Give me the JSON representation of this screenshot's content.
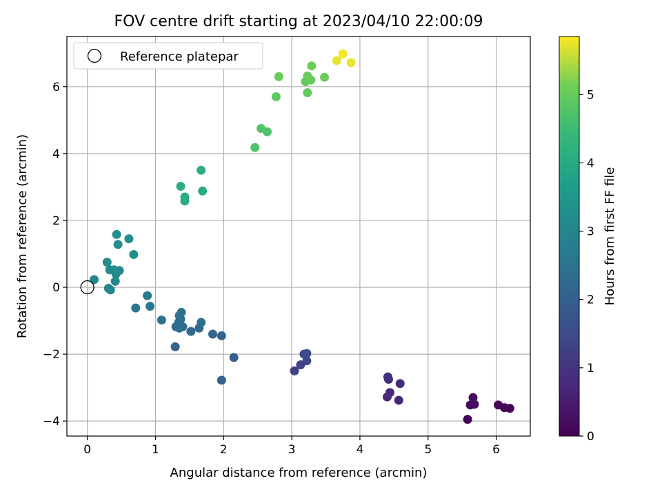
{
  "chart_data": {
    "type": "scatter",
    "title": "FOV centre drift starting at 2023/04/10 22:00:09",
    "xlabel": "Angular distance from reference (arcmin)",
    "ylabel": "Rotation from reference (arcmin)",
    "xlim": [
      -0.3,
      6.5
    ],
    "ylim": [
      -4.45,
      7.5
    ],
    "xticks": [
      0,
      1,
      2,
      3,
      4,
      5,
      6
    ],
    "yticks": [
      -4,
      -2,
      0,
      2,
      4,
      6
    ],
    "grid": true,
    "legend": {
      "placement": "top-left",
      "entries": [
        "Reference platepar"
      ]
    },
    "reference_point": {
      "x": 0,
      "y": 0
    },
    "colorbar": {
      "label": "Hours from first FF file",
      "range": [
        0,
        5.85
      ],
      "ticks": [
        0,
        1,
        2,
        3,
        4,
        5
      ],
      "colormap": "viridis"
    },
    "points": [
      {
        "x": 5.58,
        "y": -3.95,
        "t": 0.05
      },
      {
        "x": 6.2,
        "y": -3.62,
        "t": 0.08
      },
      {
        "x": 6.12,
        "y": -3.6,
        "t": 0.1
      },
      {
        "x": 6.03,
        "y": -3.52,
        "t": 0.12
      },
      {
        "x": 5.68,
        "y": -3.5,
        "t": 0.18
      },
      {
        "x": 5.62,
        "y": -3.52,
        "t": 0.2
      },
      {
        "x": 5.66,
        "y": -3.3,
        "t": 0.22
      },
      {
        "x": 4.57,
        "y": -3.38,
        "t": 0.7
      },
      {
        "x": 4.4,
        "y": -3.28,
        "t": 0.75
      },
      {
        "x": 4.44,
        "y": -3.15,
        "t": 0.78
      },
      {
        "x": 4.59,
        "y": -2.88,
        "t": 0.82
      },
      {
        "x": 4.42,
        "y": -2.75,
        "t": 0.85
      },
      {
        "x": 4.41,
        "y": -2.68,
        "t": 0.88
      },
      {
        "x": 3.04,
        "y": -2.5,
        "t": 1.3
      },
      {
        "x": 3.13,
        "y": -2.32,
        "t": 1.35
      },
      {
        "x": 3.22,
        "y": -2.2,
        "t": 1.4
      },
      {
        "x": 3.18,
        "y": -2.0,
        "t": 1.45
      },
      {
        "x": 3.22,
        "y": -1.98,
        "t": 1.48
      },
      {
        "x": 2.15,
        "y": -2.1,
        "t": 1.95
      },
      {
        "x": 1.97,
        "y": -2.78,
        "t": 2.0
      },
      {
        "x": 1.29,
        "y": -1.78,
        "t": 2.05
      },
      {
        "x": 1.97,
        "y": -1.45,
        "t": 2.1
      },
      {
        "x": 1.84,
        "y": -1.4,
        "t": 2.15
      },
      {
        "x": 1.52,
        "y": -1.32,
        "t": 2.2
      },
      {
        "x": 1.64,
        "y": -1.22,
        "t": 2.25
      },
      {
        "x": 1.35,
        "y": -1.22,
        "t": 2.28
      },
      {
        "x": 1.4,
        "y": -1.18,
        "t": 2.3
      },
      {
        "x": 1.3,
        "y": -1.18,
        "t": 2.32
      },
      {
        "x": 1.34,
        "y": -1.05,
        "t": 2.35
      },
      {
        "x": 1.67,
        "y": -1.05,
        "t": 2.38
      },
      {
        "x": 1.37,
        "y": -0.95,
        "t": 2.4
      },
      {
        "x": 1.35,
        "y": -0.85,
        "t": 2.42
      },
      {
        "x": 1.38,
        "y": -0.75,
        "t": 2.45
      },
      {
        "x": 1.09,
        "y": -0.98,
        "t": 2.5
      },
      {
        "x": 0.71,
        "y": -0.62,
        "t": 2.6
      },
      {
        "x": 0.92,
        "y": -0.57,
        "t": 2.65
      },
      {
        "x": 0.88,
        "y": -0.25,
        "t": 2.7
      },
      {
        "x": 0.34,
        "y": -0.08,
        "t": 3.0
      },
      {
        "x": 0.31,
        "y": -0.03,
        "t": 3.02
      },
      {
        "x": 0.1,
        "y": 0.23,
        "t": 3.05
      },
      {
        "x": 0.41,
        "y": 0.18,
        "t": 3.08
      },
      {
        "x": 0.42,
        "y": 0.4,
        "t": 3.1
      },
      {
        "x": 0.47,
        "y": 0.5,
        "t": 3.12
      },
      {
        "x": 0.33,
        "y": 0.52,
        "t": 3.14
      },
      {
        "x": 0.39,
        "y": 0.52,
        "t": 3.15
      },
      {
        "x": 0.29,
        "y": 0.75,
        "t": 3.18
      },
      {
        "x": 0.68,
        "y": 0.98,
        "t": 3.22
      },
      {
        "x": 0.45,
        "y": 1.28,
        "t": 3.25
      },
      {
        "x": 0.61,
        "y": 1.45,
        "t": 3.28
      },
      {
        "x": 0.43,
        "y": 1.58,
        "t": 3.3
      },
      {
        "x": 1.43,
        "y": 2.58,
        "t": 4.05
      },
      {
        "x": 1.43,
        "y": 2.7,
        "t": 4.08
      },
      {
        "x": 1.69,
        "y": 2.88,
        "t": 4.1
      },
      {
        "x": 1.37,
        "y": 3.02,
        "t": 4.12
      },
      {
        "x": 1.67,
        "y": 3.5,
        "t": 4.18
      },
      {
        "x": 2.46,
        "y": 4.18,
        "t": 4.72
      },
      {
        "x": 2.64,
        "y": 4.65,
        "t": 4.75
      },
      {
        "x": 2.55,
        "y": 4.75,
        "t": 4.78
      },
      {
        "x": 2.77,
        "y": 5.7,
        "t": 4.92
      },
      {
        "x": 3.23,
        "y": 5.82,
        "t": 4.98
      },
      {
        "x": 3.2,
        "y": 6.15,
        "t": 5.0
      },
      {
        "x": 3.28,
        "y": 6.2,
        "t": 5.02
      },
      {
        "x": 3.48,
        "y": 6.28,
        "t": 5.05
      },
      {
        "x": 2.81,
        "y": 6.3,
        "t": 5.05
      },
      {
        "x": 3.23,
        "y": 6.32,
        "t": 5.06
      },
      {
        "x": 3.29,
        "y": 6.62,
        "t": 5.1
      },
      {
        "x": 3.66,
        "y": 6.78,
        "t": 5.72
      },
      {
        "x": 3.87,
        "y": 6.72,
        "t": 5.75
      },
      {
        "x": 3.75,
        "y": 6.98,
        "t": 5.82
      }
    ]
  }
}
